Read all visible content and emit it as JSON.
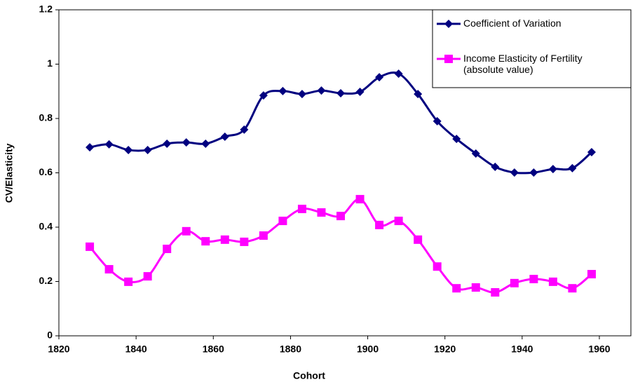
{
  "chart_data": {
    "type": "line",
    "x_label": "Cohort",
    "y_label": "CV/Elasticity",
    "x": [
      1828,
      1833,
      1838,
      1843,
      1848,
      1853,
      1858,
      1863,
      1868,
      1873,
      1878,
      1883,
      1888,
      1893,
      1898,
      1903,
      1908,
      1913,
      1918,
      1923,
      1928,
      1933,
      1938,
      1943,
      1948,
      1953,
      1958
    ],
    "series": [
      {
        "name": "Coefficient of Variation",
        "color": "#000080",
        "marker": "diamond",
        "values": [
          0.694,
          0.705,
          0.684,
          0.684,
          0.707,
          0.712,
          0.707,
          0.733,
          0.759,
          0.885,
          0.901,
          0.89,
          0.903,
          0.893,
          0.898,
          0.952,
          0.965,
          0.89,
          0.79,
          0.725,
          0.671,
          0.622,
          0.601,
          0.601,
          0.614,
          0.617,
          0.676
        ]
      },
      {
        "name": "Income Elasticity of Fertility\n(absolute value)",
        "color": "#FF00FF",
        "marker": "square",
        "values": [
          0.328,
          0.245,
          0.199,
          0.219,
          0.32,
          0.385,
          0.348,
          0.354,
          0.346,
          0.369,
          0.423,
          0.467,
          0.454,
          0.441,
          0.503,
          0.408,
          0.423,
          0.354,
          0.255,
          0.175,
          0.178,
          0.16,
          0.194,
          0.209,
          0.199,
          0.175,
          0.227
        ]
      }
    ],
    "xlim": [
      1820,
      1960
    ],
    "xticks": [
      1820,
      1840,
      1860,
      1880,
      1900,
      1920,
      1940,
      1960
    ],
    "ylim": [
      0,
      1.2
    ],
    "yticks": [
      0,
      0.2,
      0.4,
      0.6,
      0.8,
      1,
      1.2
    ],
    "grid": false,
    "legend": "top-right"
  }
}
